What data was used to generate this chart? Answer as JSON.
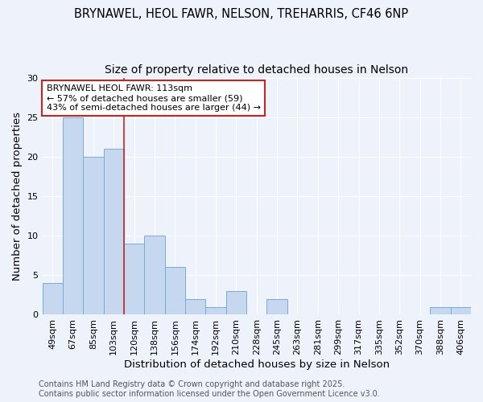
{
  "title_line1": "BRYNAWEL, HEOL FAWR, NELSON, TREHARRIS, CF46 6NP",
  "title_line2": "Size of property relative to detached houses in Nelson",
  "xlabel": "Distribution of detached houses by size in Nelson",
  "ylabel": "Number of detached properties",
  "categories": [
    "49sqm",
    "67sqm",
    "85sqm",
    "103sqm",
    "120sqm",
    "138sqm",
    "156sqm",
    "174sqm",
    "192sqm",
    "210sqm",
    "228sqm",
    "245sqm",
    "263sqm",
    "281sqm",
    "299sqm",
    "317sqm",
    "335sqm",
    "352sqm",
    "370sqm",
    "388sqm",
    "406sqm"
  ],
  "values": [
    4,
    25,
    20,
    21,
    9,
    10,
    6,
    2,
    1,
    3,
    0,
    2,
    0,
    0,
    0,
    0,
    0,
    0,
    0,
    1,
    1
  ],
  "bar_color": "#c5d8f0",
  "bar_edge_color": "#7aadd4",
  "background_color": "#eef2fb",
  "grid_color": "#ffffff",
  "vline_x_index": 3.5,
  "vline_color": "#cc2222",
  "annotation_text": "BRYNAWEL HEOL FAWR: 113sqm\n← 57% of detached houses are smaller (59)\n43% of semi-detached houses are larger (44) →",
  "annotation_box_color": "#ffffff",
  "annotation_box_edge": "#cc2222",
  "ylim": [
    0,
    30
  ],
  "yticks": [
    0,
    5,
    10,
    15,
    20,
    25,
    30
  ],
  "footer_line1": "Contains HM Land Registry data © Crown copyright and database right 2025.",
  "footer_line2": "Contains public sector information licensed under the Open Government Licence v3.0.",
  "title_fontsize": 10.5,
  "subtitle_fontsize": 10,
  "axis_label_fontsize": 9.5,
  "tick_fontsize": 8,
  "annotation_fontsize": 8,
  "footer_fontsize": 7
}
